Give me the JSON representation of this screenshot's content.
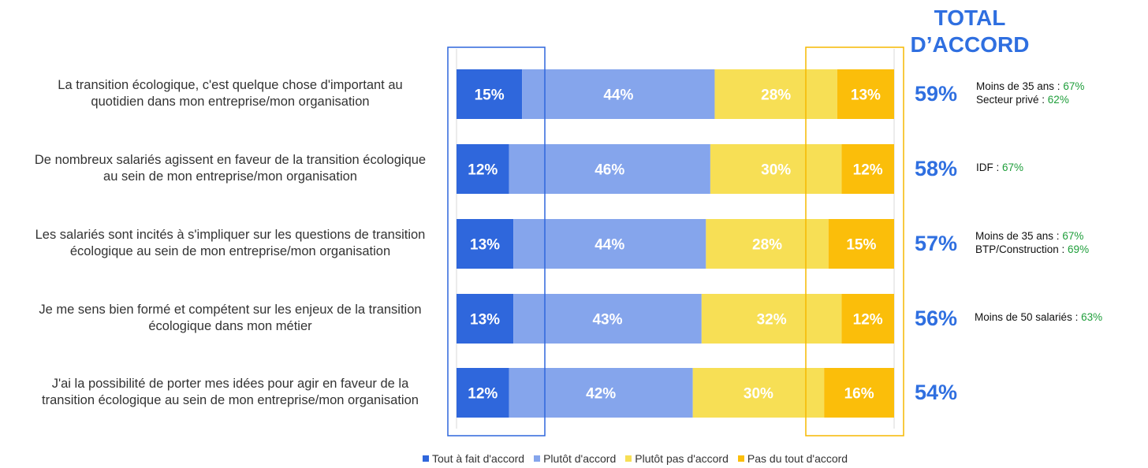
{
  "chart_data": {
    "type": "bar",
    "orientation": "horizontal",
    "stacked": true,
    "xlim": [
      0,
      100
    ],
    "categories": [
      "La transition écologique, c'est quelque chose d'important au quotidien dans mon entreprise/mon organisation",
      "De nombreux salariés agissent en faveur de la transition écologique au sein de mon entreprise/mon organisation",
      "Les salariés sont incités à s'impliquer sur les questions de transition écologique au sein de mon entreprise/mon organisation",
      "Je me sens bien formé et compétent sur les enjeux de la transition écologique dans mon métier",
      "J'ai la possibilité de porter mes idées pour agir en faveur de la transition écologique au sein de mon entreprise/mon organisation"
    ],
    "category_lines": [
      [
        "La transition écologique, c'est quelque chose d'important au",
        "quotidien dans mon entreprise/mon organisation"
      ],
      [
        "De nombreux salariés agissent en faveur de la transition écologique",
        "au sein de mon entreprise/mon organisation"
      ],
      [
        "Les salariés sont incités à s'impliquer sur les questions de transition",
        "écologique au sein de mon entreprise/mon organisation"
      ],
      [
        "Je me sens bien formé et compétent sur les enjeux de la transition",
        "écologique dans mon métier"
      ],
      [
        "J'ai la possibilité de porter mes idées pour agir en faveur de la",
        "transition écologique au sein de mon entreprise/mon organisation"
      ]
    ],
    "series": [
      {
        "name": "Tout à fait d'accord",
        "color": "#2f67dc",
        "values": [
          15,
          12,
          13,
          13,
          12
        ]
      },
      {
        "name": "Plutôt d'accord",
        "color": "#85a5ec",
        "values": [
          44,
          46,
          44,
          43,
          42
        ]
      },
      {
        "name": "Plutôt pas d'accord",
        "color": "#f7df55",
        "values": [
          28,
          30,
          28,
          32,
          30
        ]
      },
      {
        "name": "Pas du tout d'accord",
        "color": "#fbbe0a",
        "values": [
          13,
          12,
          15,
          12,
          16
        ]
      }
    ],
    "data_labels": [
      [
        "15%",
        "44%",
        "28%",
        "13%"
      ],
      [
        "12%",
        "46%",
        "30%",
        "12%"
      ],
      [
        "13%",
        "44%",
        "28%",
        "15%"
      ],
      [
        "13%",
        "43%",
        "32%",
        "12%"
      ],
      [
        "12%",
        "42%",
        "30%",
        "16%"
      ]
    ],
    "highlight_boxes": [
      {
        "series": "Tout à fait d'accord",
        "color": "#2f67dc"
      },
      {
        "series": "Pas du tout d'accord",
        "color": "#f5b800"
      }
    ],
    "legend_position": "bottom"
  },
  "total": {
    "title_line1": "TOTAL",
    "title_line2": "D’ACCORD",
    "values": [
      "59%",
      "58%",
      "57%",
      "56%",
      "54%"
    ],
    "notes": [
      [
        {
          "label": "Moins de 35 ans : ",
          "value": "67%"
        },
        {
          "label": "Secteur privé : ",
          "value": "62%"
        }
      ],
      [
        {
          "label": "IDF : ",
          "value": "67%"
        }
      ],
      [
        {
          "label": "Moins de 35 ans : ",
          "value": "67%"
        },
        {
          "label": "BTP/Construction : ",
          "value": "69%"
        }
      ],
      [
        {
          "label": "Moins de 50 salariés : ",
          "value": "63%"
        }
      ],
      []
    ]
  },
  "colors": {
    "accent": "#2f6fe0",
    "note_value": "#1e9e3a"
  }
}
